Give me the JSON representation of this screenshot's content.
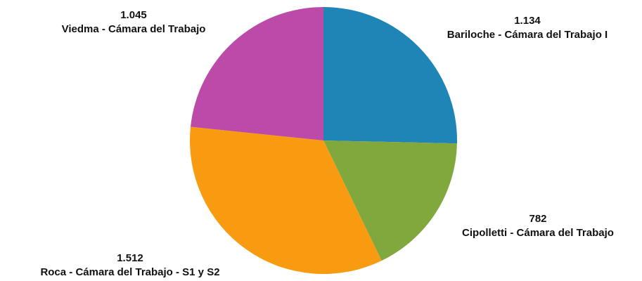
{
  "chart_data": {
    "type": "pie",
    "categories": [
      "Bariloche - Cámara del Trabajo I",
      "Cipolletti - Cámara del Trabajo",
      "Roca - Cámara del Trabajo - S1 y S2",
      "Viedma - Cámara del Trabajo"
    ],
    "values": [
      1134,
      782,
      1512,
      1045
    ],
    "value_labels": [
      "1.134",
      "782",
      "1.512",
      "1.045"
    ],
    "colors": [
      "#1f84b6",
      "#80a83d",
      "#f99b11",
      "#bc4aa8"
    ]
  }
}
